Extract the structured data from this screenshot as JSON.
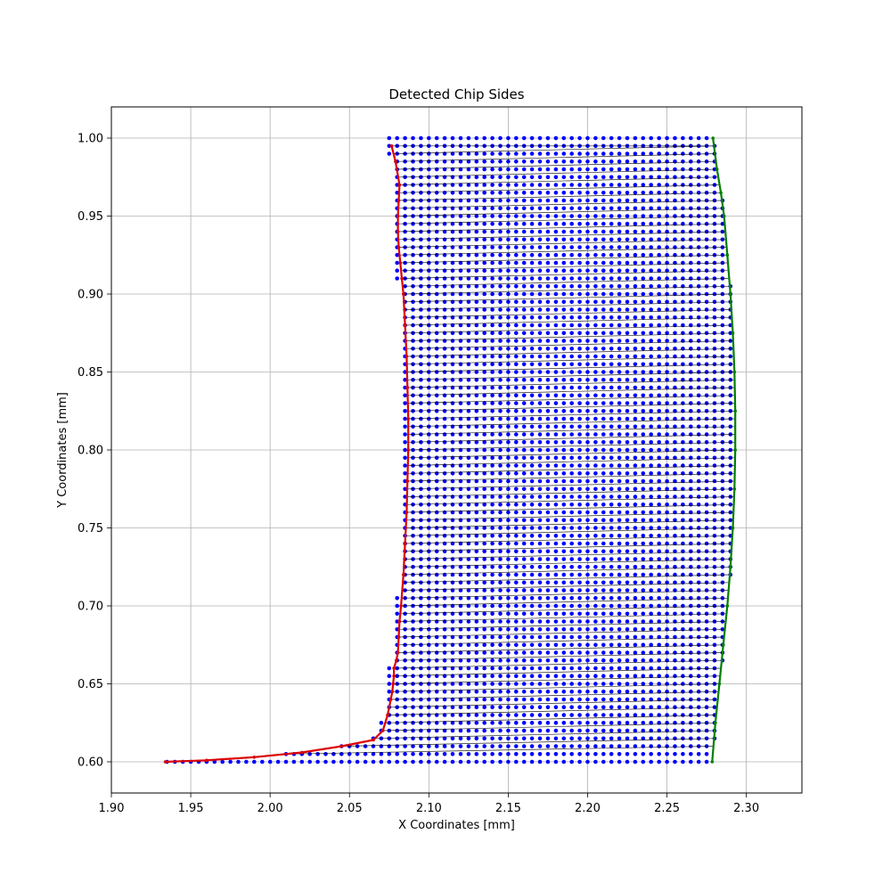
{
  "chart_data": {
    "type": "scatter",
    "title": "Detected Chip Sides",
    "xlabel": "X Coordinates [mm]",
    "ylabel": "Y Coordinates [mm]",
    "xlim": [
      1.9,
      2.335
    ],
    "ylim": [
      0.58,
      1.02
    ],
    "xticks": [
      "1.90",
      "1.95",
      "2.00",
      "2.05",
      "2.10",
      "2.15",
      "2.20",
      "2.25",
      "2.30"
    ],
    "yticks": [
      "0.60",
      "0.65",
      "0.70",
      "0.75",
      "0.80",
      "0.85",
      "0.90",
      "0.95",
      "1.00"
    ],
    "grid": true,
    "legend": "none",
    "grid_points": {
      "x_step": 0.005,
      "y_step": 0.005,
      "y_range": [
        0.6,
        1.0
      ],
      "color": "#0000ff"
    },
    "series": [
      {
        "role": "left-side",
        "color": "#dd0000",
        "x": [
          1.934,
          1.96,
          1.99,
          2.02,
          2.045,
          2.065,
          2.071,
          2.074,
          2.076,
          2.077,
          2.0775,
          2.078,
          2.078,
          2.0795,
          2.0805,
          2.081,
          2.0815,
          2.0825,
          2.084,
          2.085,
          2.086,
          2.0865,
          2.087,
          2.087,
          2.0865,
          2.086,
          2.085,
          2.084,
          2.083,
          2.082,
          2.081,
          2.0805,
          2.0805,
          2.081,
          2.0815,
          2.079,
          2.0765
        ],
        "y": [
          0.6,
          0.601,
          0.603,
          0.606,
          0.61,
          0.614,
          0.62,
          0.63,
          0.64,
          0.645,
          0.65,
          0.655,
          0.66,
          0.665,
          0.67,
          0.68,
          0.69,
          0.7,
          0.72,
          0.74,
          0.76,
          0.78,
          0.8,
          0.82,
          0.84,
          0.86,
          0.88,
          0.9,
          0.91,
          0.92,
          0.93,
          0.94,
          0.95,
          0.96,
          0.97,
          0.985,
          0.995
        ]
      },
      {
        "role": "right-side",
        "color": "#008000",
        "x": [
          2.2785,
          2.2805,
          2.283,
          2.2855,
          2.288,
          2.29,
          2.2915,
          2.2925,
          2.293,
          2.293,
          2.2925,
          2.2915,
          2.29,
          2.288,
          2.286,
          2.284,
          2.2815,
          2.279
        ],
        "y": [
          0.6,
          0.625,
          0.65,
          0.675,
          0.7,
          0.725,
          0.75,
          0.775,
          0.8,
          0.825,
          0.85,
          0.875,
          0.9,
          0.925,
          0.95,
          0.965,
          0.98,
          1.0
        ]
      }
    ]
  }
}
